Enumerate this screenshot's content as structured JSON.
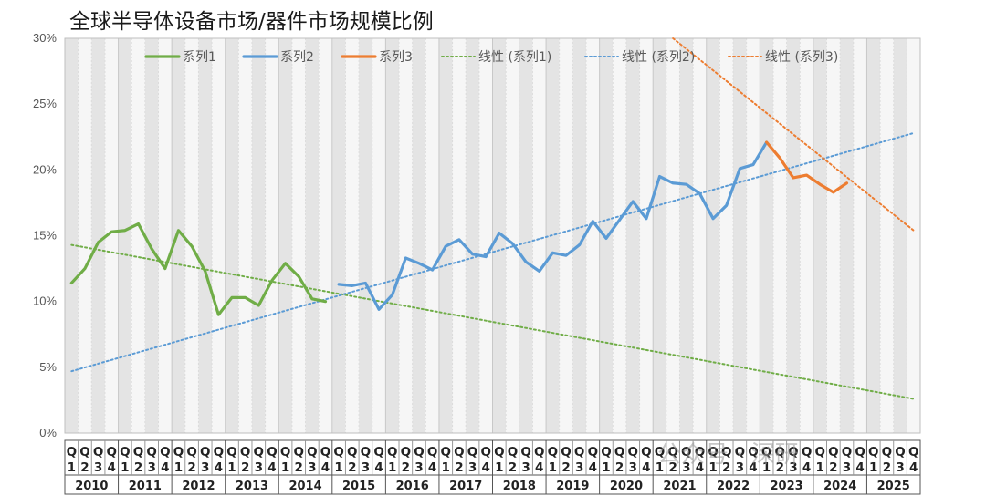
{
  "title": "全球半导体设备市场/器件市场规模比例",
  "watermark": "公众号 · 深研",
  "chart_data": {
    "type": "line",
    "y_ticks": [
      "0%",
      "5%",
      "10%",
      "15%",
      "20%",
      "25%",
      "30%"
    ],
    "ylim": [
      0,
      30
    ],
    "grid": "alternating gray quarter bands",
    "legend_position": "top",
    "quarter_labels": [
      "Q1",
      "Q2",
      "Q3",
      "Q4"
    ],
    "years": [
      "2010",
      "2011",
      "2012",
      "2013",
      "2014",
      "2015",
      "2016",
      "2017",
      "2018",
      "2019",
      "2020",
      "2021",
      "2022",
      "2023",
      "2024",
      "2025"
    ],
    "series": [
      {
        "name": "系列1",
        "color": "#70ad47",
        "start_index": 0,
        "values": [
          11.4,
          12.5,
          14.5,
          15.3,
          15.4,
          15.9,
          14.0,
          12.5,
          15.4,
          14.2,
          12.3,
          9.0,
          10.3,
          10.3,
          9.7,
          11.6,
          12.9,
          11.9,
          10.2,
          10.0
        ]
      },
      {
        "name": "系列2",
        "color": "#5b9bd5",
        "start_index": 20,
        "values": [
          11.3,
          11.2,
          11.4,
          9.4,
          10.5,
          13.3,
          12.9,
          12.4,
          14.2,
          14.7,
          13.6,
          13.4,
          15.2,
          14.4,
          13.0,
          12.3,
          13.7,
          13.5,
          14.3,
          16.1,
          14.8,
          16.2,
          17.6,
          16.3,
          19.5,
          19.0,
          18.9,
          18.2,
          16.3,
          17.3,
          20.1,
          20.4,
          22.1
        ]
      },
      {
        "name": "系列3",
        "color": "#ed7d31",
        "start_index": 52,
        "values": [
          22.1,
          20.9,
          19.4,
          19.6,
          18.9,
          18.3,
          19.0
        ]
      }
    ],
    "trendlines": [
      {
        "name": "线性 (系列1)",
        "color": "#70ad47",
        "from": [
          0,
          14.3
        ],
        "to": [
          63,
          2.6
        ]
      },
      {
        "name": "线性 (系列2)",
        "color": "#5b9bd5",
        "from": [
          0,
          4.7
        ],
        "to": [
          63,
          22.8
        ]
      },
      {
        "name": "线性 (系列3)",
        "color": "#ed7d31",
        "from": [
          45,
          30.0
        ],
        "to": [
          63,
          15.4
        ]
      }
    ]
  }
}
